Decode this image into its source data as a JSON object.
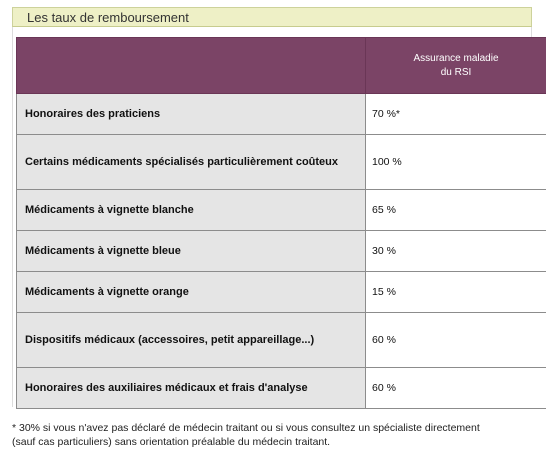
{
  "section": {
    "title": "Les taux de remboursement"
  },
  "table": {
    "column_header_line1": "Assurance maladie",
    "column_header_line2": "du RSI",
    "rows": [
      {
        "label": "Honoraires des praticiens",
        "value": "70 %*"
      },
      {
        "label": "Certains médicaments spécialisés particulièrement coûteux",
        "value": "100 %"
      },
      {
        "label": "Médicaments à vignette blanche",
        "value": "65 %"
      },
      {
        "label": "Médicaments à vignette bleue",
        "value": "30 %"
      },
      {
        "label": "Médicaments à vignette orange",
        "value": "15 %"
      },
      {
        "label": "Dispositifs médicaux (accessoires, petit appareillage...)",
        "value": "60 %"
      },
      {
        "label": "Honoraires des auxiliaires médicaux et frais d'analyse",
        "value": "60 %"
      }
    ]
  },
  "footnote": {
    "line1": "* 30% si vous n'avez pas déclaré de médecin traitant ou si vous consultez un spécialiste directement",
    "line2": "(sauf cas particuliers) sans orientation préalable du médecin traitant."
  },
  "colors": {
    "header_bar": "#eef0c6",
    "table_header": "#7b4466",
    "label_cell": "#e5e5e5"
  }
}
